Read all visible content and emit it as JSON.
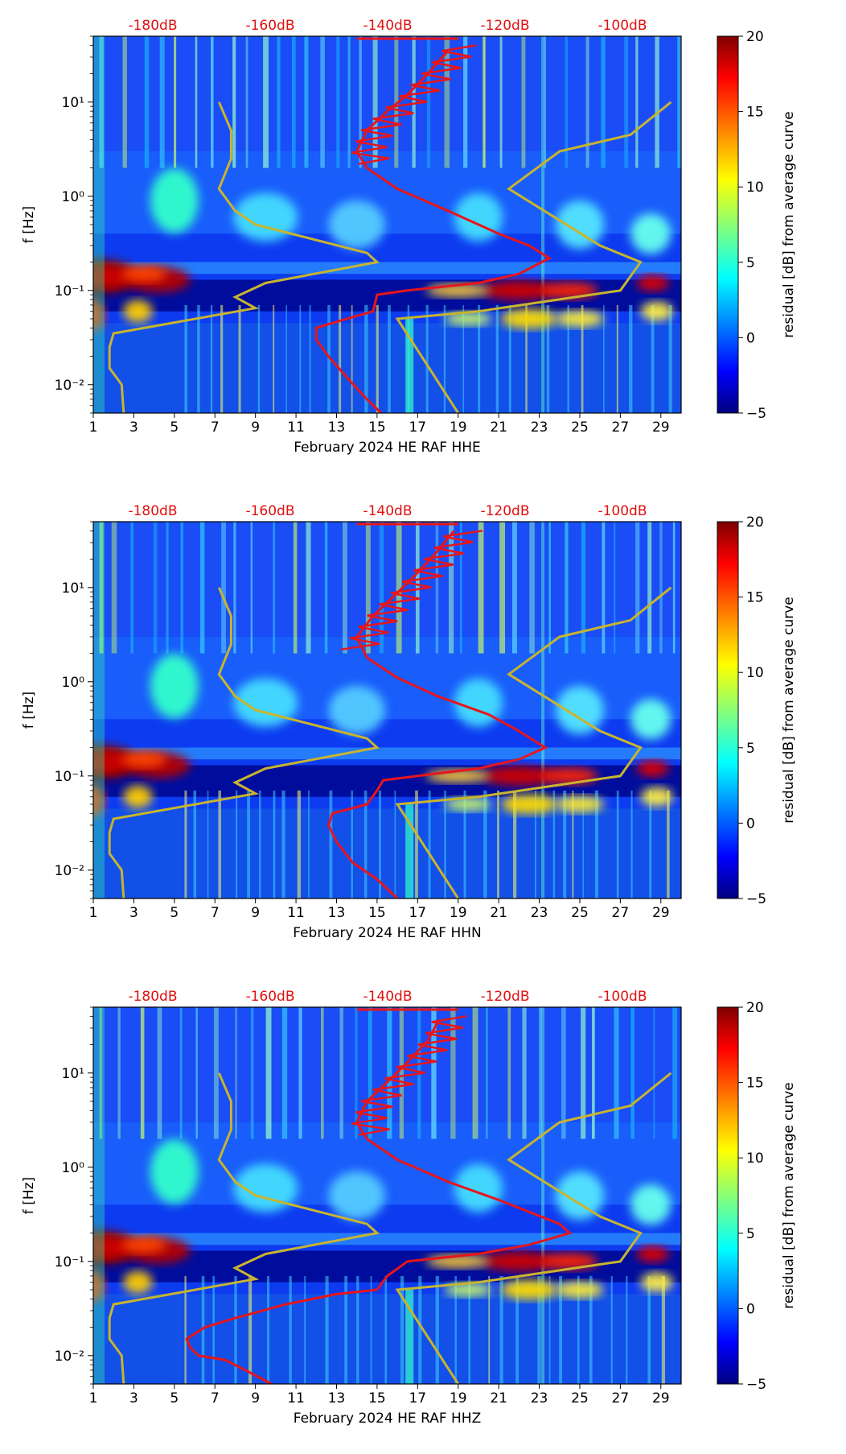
{
  "chart_data": [
    {
      "type": "heatmap",
      "panel": "HHE",
      "xlabel": "February 2024 HE RAF  HHE",
      "ylabel": "f [Hz]",
      "colorbar_label": "residual [dB] from average curve",
      "x_ticks": [
        1,
        3,
        5,
        7,
        9,
        11,
        13,
        15,
        17,
        19,
        21,
        23,
        25,
        27,
        29
      ],
      "x_range": [
        1,
        30
      ],
      "y_range_hz": [
        0.005,
        50
      ],
      "y_scale": "log",
      "y_tick_labels": [
        "10⁻²",
        "10⁻¹",
        "10⁰",
        "10¹"
      ],
      "y_tick_values": [
        0.01,
        0.1,
        1,
        10
      ],
      "top_db_labels": [
        "-180dB",
        "-160dB",
        "-140dB",
        "-120dB",
        "-100dB"
      ],
      "top_db_values": [
        -180,
        -160,
        -140,
        -120,
        -100
      ],
      "colorbar_ticks": [
        -5,
        0,
        5,
        10,
        15,
        20
      ],
      "colorbar_range": [
        -5,
        20
      ],
      "red_curve": [
        [
          15.2,
          0.005
        ],
        [
          14.5,
          0.007
        ],
        [
          13.5,
          0.012
        ],
        [
          12.6,
          0.02
        ],
        [
          12.0,
          0.03
        ],
        [
          12.0,
          0.04
        ],
        [
          13.5,
          0.05
        ],
        [
          14.8,
          0.06
        ],
        [
          15.0,
          0.09
        ],
        [
          16.5,
          0.1
        ],
        [
          20.0,
          0.12
        ],
        [
          22.0,
          0.15
        ],
        [
          23.5,
          0.22
        ],
        [
          22.5,
          0.3
        ],
        [
          21.0,
          0.4
        ],
        [
          18.5,
          0.7
        ],
        [
          16.0,
          1.2
        ],
        [
          14.5,
          2.0
        ],
        [
          14.0,
          3.0
        ],
        [
          14.5,
          5.0
        ],
        [
          15.5,
          8.0
        ],
        [
          16.5,
          12.0
        ],
        [
          17.5,
          20.0
        ],
        [
          18.5,
          35.0
        ]
      ],
      "yellow_curve_left": [
        [
          2.5,
          0.005
        ],
        [
          2.4,
          0.01
        ],
        [
          1.8,
          0.015
        ],
        [
          1.8,
          0.025
        ],
        [
          2.0,
          0.035
        ],
        [
          9.0,
          0.065
        ],
        [
          8.0,
          0.085
        ],
        [
          9.5,
          0.12
        ],
        [
          15.0,
          0.2
        ],
        [
          14.5,
          0.25
        ],
        [
          9.0,
          0.5
        ],
        [
          8.0,
          0.7
        ],
        [
          7.2,
          1.2
        ],
        [
          7.8,
          2.5
        ],
        [
          7.8,
          5.0
        ],
        [
          7.2,
          10.0
        ]
      ],
      "yellow_curve_right": [
        [
          19.0,
          0.005
        ],
        [
          16.0,
          0.05
        ],
        [
          20.0,
          0.06
        ],
        [
          27.0,
          0.1
        ],
        [
          28.0,
          0.2
        ],
        [
          26.0,
          0.3
        ],
        [
          21.5,
          1.2
        ],
        [
          24.0,
          3.0
        ],
        [
          27.5,
          4.5
        ],
        [
          29.5,
          10.0
        ]
      ]
    },
    {
      "type": "heatmap",
      "panel": "HHN",
      "xlabel": "February 2024 HE RAF  HHN",
      "ylabel": "f [Hz]",
      "colorbar_label": "residual [dB] from average curve",
      "x_ticks": [
        1,
        3,
        5,
        7,
        9,
        11,
        13,
        15,
        17,
        19,
        21,
        23,
        25,
        27,
        29
      ],
      "x_range": [
        1,
        30
      ],
      "y_range_hz": [
        0.005,
        50
      ],
      "y_scale": "log",
      "y_tick_labels": [
        "10⁻²",
        "10⁻¹",
        "10⁰",
        "10¹"
      ],
      "y_tick_values": [
        0.01,
        0.1,
        1,
        10
      ],
      "top_db_labels": [
        "-180dB",
        "-160dB",
        "-140dB",
        "-120dB",
        "-100dB"
      ],
      "top_db_values": [
        -180,
        -160,
        -140,
        -120,
        -100
      ],
      "colorbar_ticks": [
        -5,
        0,
        5,
        10,
        15,
        20
      ],
      "colorbar_range": [
        -5,
        20
      ],
      "red_curve": [
        [
          16.0,
          0.005
        ],
        [
          15.0,
          0.008
        ],
        [
          13.8,
          0.012
        ],
        [
          13.0,
          0.02
        ],
        [
          12.6,
          0.03
        ],
        [
          12.8,
          0.04
        ],
        [
          14.5,
          0.05
        ],
        [
          15.0,
          0.07
        ],
        [
          15.3,
          0.09
        ],
        [
          17.0,
          0.1
        ],
        [
          20.0,
          0.12
        ],
        [
          22.0,
          0.15
        ],
        [
          23.3,
          0.2
        ],
        [
          22.0,
          0.3
        ],
        [
          20.5,
          0.45
        ],
        [
          18.0,
          0.7
        ],
        [
          16.0,
          1.1
        ],
        [
          14.5,
          1.8
        ],
        [
          14.0,
          3.0
        ],
        [
          14.8,
          5.0
        ],
        [
          15.8,
          8.0
        ],
        [
          16.8,
          13.0
        ],
        [
          17.8,
          22.0
        ],
        [
          18.8,
          40.0
        ]
      ],
      "yellow_curve_left": [
        [
          2.5,
          0.005
        ],
        [
          2.4,
          0.01
        ],
        [
          1.8,
          0.015
        ],
        [
          1.8,
          0.025
        ],
        [
          2.0,
          0.035
        ],
        [
          9.0,
          0.065
        ],
        [
          8.0,
          0.085
        ],
        [
          9.5,
          0.12
        ],
        [
          15.0,
          0.2
        ],
        [
          14.5,
          0.25
        ],
        [
          9.0,
          0.5
        ],
        [
          8.0,
          0.7
        ],
        [
          7.2,
          1.2
        ],
        [
          7.8,
          2.5
        ],
        [
          7.8,
          5.0
        ],
        [
          7.2,
          10.0
        ]
      ],
      "yellow_curve_right": [
        [
          19.0,
          0.005
        ],
        [
          16.0,
          0.05
        ],
        [
          20.0,
          0.06
        ],
        [
          27.0,
          0.1
        ],
        [
          28.0,
          0.2
        ],
        [
          26.0,
          0.3
        ],
        [
          21.5,
          1.2
        ],
        [
          24.0,
          3.0
        ],
        [
          27.5,
          4.5
        ],
        [
          29.5,
          10.0
        ]
      ]
    },
    {
      "type": "heatmap",
      "panel": "HHZ",
      "xlabel": "February 2024 HE RAF  HHZ",
      "ylabel": "f [Hz]",
      "colorbar_label": "residual [dB] from average curve",
      "x_ticks": [
        1,
        3,
        5,
        7,
        9,
        11,
        13,
        15,
        17,
        19,
        21,
        23,
        25,
        27,
        29
      ],
      "x_range": [
        1,
        30
      ],
      "y_range_hz": [
        0.005,
        50
      ],
      "y_scale": "log",
      "y_tick_labels": [
        "10⁻²",
        "10⁻¹",
        "10⁰",
        "10¹"
      ],
      "y_tick_values": [
        0.01,
        0.1,
        1,
        10
      ],
      "top_db_labels": [
        "-180dB",
        "-160dB",
        "-140dB",
        "-120dB",
        "-100dB"
      ],
      "top_db_values": [
        -180,
        -160,
        -140,
        -120,
        -100
      ],
      "colorbar_ticks": [
        -5,
        0,
        5,
        10,
        15,
        20
      ],
      "colorbar_range": [
        -5,
        20
      ],
      "red_curve": [
        [
          9.8,
          0.005
        ],
        [
          8.5,
          0.007
        ],
        [
          7.5,
          0.009
        ],
        [
          6.2,
          0.01
        ],
        [
          5.8,
          0.012
        ],
        [
          5.6,
          0.015
        ],
        [
          6.5,
          0.02
        ],
        [
          8.0,
          0.025
        ],
        [
          10.5,
          0.035
        ],
        [
          13.0,
          0.045
        ],
        [
          15.0,
          0.05
        ],
        [
          15.5,
          0.07
        ],
        [
          16.5,
          0.1
        ],
        [
          20.0,
          0.12
        ],
        [
          22.5,
          0.15
        ],
        [
          24.5,
          0.2
        ],
        [
          24.0,
          0.25
        ],
        [
          21.0,
          0.45
        ],
        [
          18.5,
          0.7
        ],
        [
          16.0,
          1.2
        ],
        [
          14.5,
          2.0
        ],
        [
          14.0,
          3.0
        ],
        [
          14.5,
          5.0
        ],
        [
          15.5,
          8.0
        ],
        [
          16.5,
          13.0
        ],
        [
          17.5,
          22.0
        ],
        [
          18.0,
          35.0
        ]
      ],
      "yellow_curve_left": [
        [
          2.5,
          0.005
        ],
        [
          2.4,
          0.01
        ],
        [
          1.8,
          0.015
        ],
        [
          1.8,
          0.025
        ],
        [
          2.0,
          0.035
        ],
        [
          9.0,
          0.065
        ],
        [
          8.0,
          0.085
        ],
        [
          9.5,
          0.12
        ],
        [
          15.0,
          0.2
        ],
        [
          14.5,
          0.25
        ],
        [
          9.0,
          0.5
        ],
        [
          8.0,
          0.7
        ],
        [
          7.2,
          1.2
        ],
        [
          7.8,
          2.5
        ],
        [
          7.8,
          5.0
        ],
        [
          7.2,
          10.0
        ]
      ],
      "yellow_curve_right": [
        [
          19.0,
          0.005
        ],
        [
          16.0,
          0.05
        ],
        [
          20.0,
          0.06
        ],
        [
          27.0,
          0.1
        ],
        [
          28.0,
          0.2
        ],
        [
          26.0,
          0.3
        ],
        [
          21.5,
          1.2
        ],
        [
          24.0,
          3.0
        ],
        [
          27.5,
          4.5
        ],
        [
          29.5,
          10.0
        ]
      ]
    }
  ]
}
